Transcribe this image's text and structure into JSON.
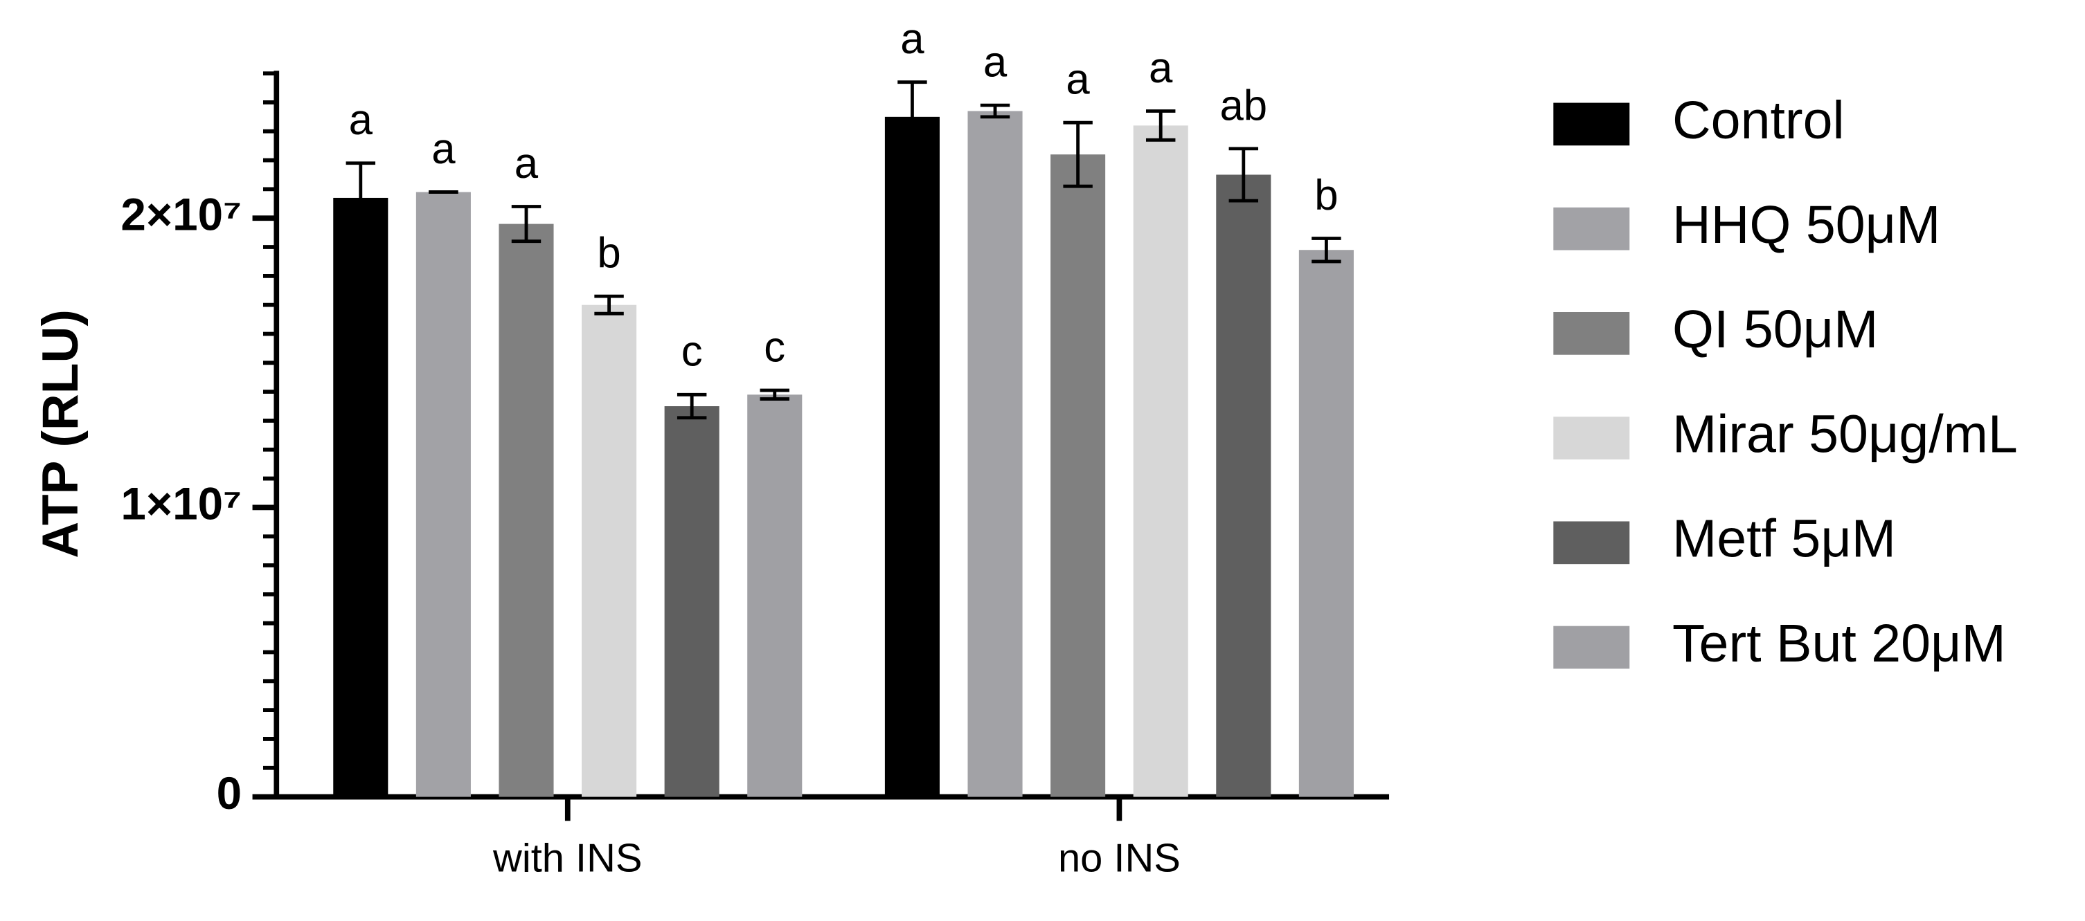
{
  "chart_data": {
    "type": "bar",
    "ylabel": "ATP (RLU)",
    "categories": [
      "with INS",
      "no INS"
    ],
    "ylim": [
      0,
      25000000
    ],
    "yticks": [
      0,
      {
        "value": 10000000,
        "label": "1×10⁷"
      },
      {
        "value": 20000000,
        "label": "2×10⁷"
      }
    ],
    "yminor_ticks": [
      1000000,
      2000000,
      3000000,
      4000000,
      5000000,
      6000000,
      7000000,
      8000000,
      9000000,
      11000000,
      12000000,
      13000000,
      14000000,
      15000000,
      16000000,
      17000000,
      18000000,
      19000000,
      21000000,
      22000000,
      23000000,
      24000000,
      25000000
    ],
    "legend": "right",
    "series": [
      {
        "name": "Control",
        "color": "#000000",
        "values": [
          20700000,
          23500000
        ],
        "errors": [
          1200000,
          1200000
        ],
        "letters": [
          "a",
          "a"
        ]
      },
      {
        "name": "HHQ 50μM",
        "color": "#a2a2a6",
        "values": [
          20900000,
          23700000
        ],
        "errors": [
          0,
          200000
        ],
        "letters": [
          "a",
          "a"
        ]
      },
      {
        "name": "QI 50μM",
        "color": "#808080",
        "values": [
          19800000,
          22200000
        ],
        "errors": [
          600000,
          1100000
        ],
        "letters": [
          "a",
          "a"
        ]
      },
      {
        "name": "Mirar 50μg/mL",
        "color": "#d7d7d7",
        "values": [
          17000000,
          23200000
        ],
        "errors": [
          300000,
          500000
        ],
        "letters": [
          "b",
          "a"
        ]
      },
      {
        "name": "Metf 5μM",
        "color": "#5f5f5f",
        "values": [
          13500000,
          21500000
        ],
        "errors": [
          400000,
          900000
        ],
        "letters": [
          "c",
          "ab"
        ]
      },
      {
        "name": "Tert But 20μM",
        "color": "#a0a0a4",
        "values": [
          13900000,
          18900000
        ],
        "errors": [
          150000,
          400000
        ],
        "letters": [
          "c",
          "b"
        ]
      }
    ]
  }
}
